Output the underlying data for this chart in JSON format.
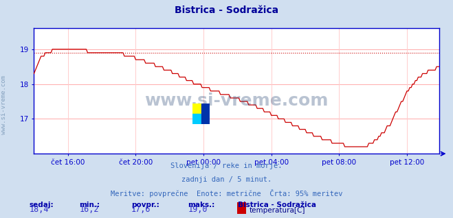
{
  "title": "Bistrica - Sodražica",
  "subtitle_lines": [
    "Slovenija / reke in morje.",
    "zadnji dan / 5 minut.",
    "Meritve: povprečne  Enote: metrične  Črta: 95% meritev"
  ],
  "xlabel_ticks": [
    "čet 16:00",
    "čet 20:00",
    "pet 00:00",
    "pet 04:00",
    "pet 08:00",
    "pet 12:00"
  ],
  "yticks": [
    17,
    18,
    19
  ],
  "ylim": [
    16.0,
    19.6
  ],
  "xlim": [
    0,
    287
  ],
  "max_line_y": 18.9,
  "bg_color": "#d0dff0",
  "plot_bg_color": "#ffffff",
  "grid_color_h": "#ffaaaa",
  "grid_color_v": "#ffcccc",
  "line_color": "#cc0000",
  "axis_color": "#0000cc",
  "title_color": "#000099",
  "label_color": "#0000cc",
  "sedaj_label": "sedaj:",
  "min_label": "min.:",
  "povpr_label": "povpr.:",
  "maks_label": "maks.:",
  "sedaj_val": "18,4",
  "min_val": "16,2",
  "povpr_val": "17,6",
  "maks_val": "19,0",
  "legend_title": "Bistrica - Sodražica",
  "legend_item": "temperatura[C]",
  "legend_color": "#cc0000",
  "x_tick_positions": [
    24,
    72,
    120,
    168,
    216,
    264
  ]
}
